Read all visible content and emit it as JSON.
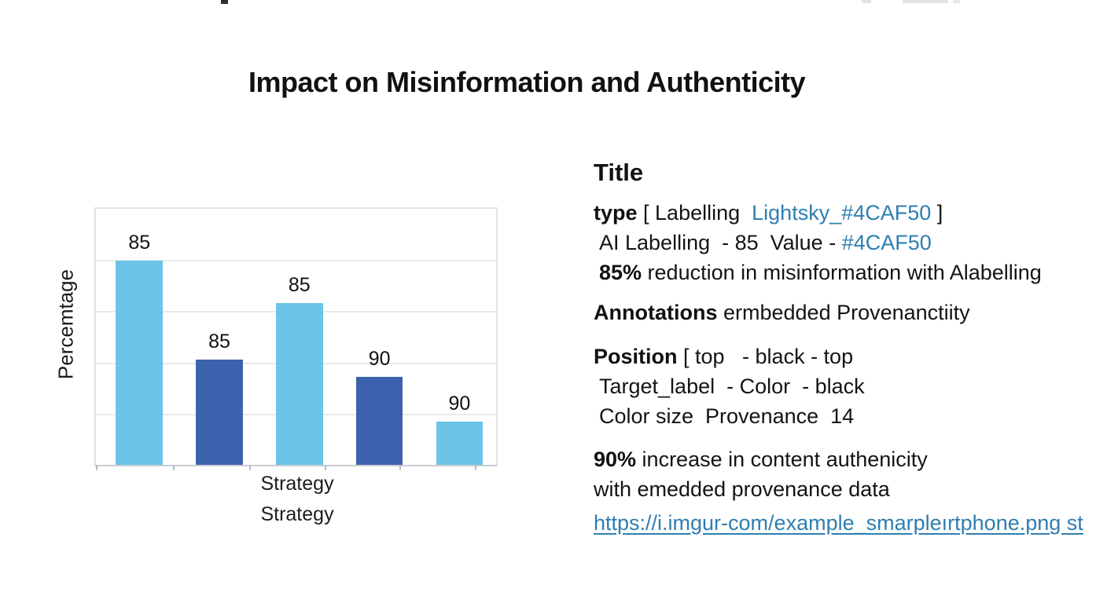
{
  "chart_data": {
    "type": "bar",
    "title": "Impact on Misinformation and Authenticity",
    "xlabel": "Strategy",
    "ylabel": "Percemtage",
    "x_tick_labels": [
      "Strategy"
    ],
    "y_tick_labels": [],
    "values": [
      85,
      85,
      85,
      90,
      90
    ],
    "bars": [
      {
        "label": "85",
        "value": 85,
        "color": "light",
        "height_pct": 79.7
      },
      {
        "label": "85",
        "value": 85,
        "color": "dark",
        "height_pct": 41.2
      },
      {
        "label": "85",
        "value": 85,
        "color": "light",
        "height_pct": 63.3
      },
      {
        "label": "90",
        "value": 90,
        "color": "dark",
        "height_pct": 34.5
      },
      {
        "label": "90",
        "value": 90,
        "color": "light",
        "height_pct": 17.0
      }
    ],
    "colors": {
      "light": "#6CC4E8",
      "dark": "#3D62AD"
    },
    "layout": {
      "grid": true,
      "gridline_count": 4,
      "ticks_pct": [
        0,
        19.3,
        38.4,
        57.1,
        75.8,
        94.6
      ],
      "legend": "none"
    }
  },
  "panel": {
    "title": "Title",
    "line_type": {
      "b": "type",
      "t": " [ Labelling  ",
      "blue": "Lightsky_#4CAF50",
      "end": " ]"
    },
    "line_ai": {
      "t": "AI Labelling  - 85  Value - ",
      "blue": "#4CAF50"
    },
    "line_85": {
      "b": "85%",
      "t": " reduction in misinformation with Alabelling"
    },
    "line_annot": {
      "b": "Annotations",
      "t": " ermbedded Provenanctiity"
    },
    "line_pos": {
      "b": "Position",
      "t": " [ top   - black - top"
    },
    "line_target": {
      "t": "Target_label  - Color  - black"
    },
    "line_color": {
      "t": "Color size  Provenance  14"
    },
    "line_90": {
      "b": "90%",
      "t": " increase in content authenicity"
    },
    "line_with": {
      "t": "with emedded provenance data"
    },
    "url": "https://i.imgur-com/example_smarpleırtphone.png st"
  }
}
